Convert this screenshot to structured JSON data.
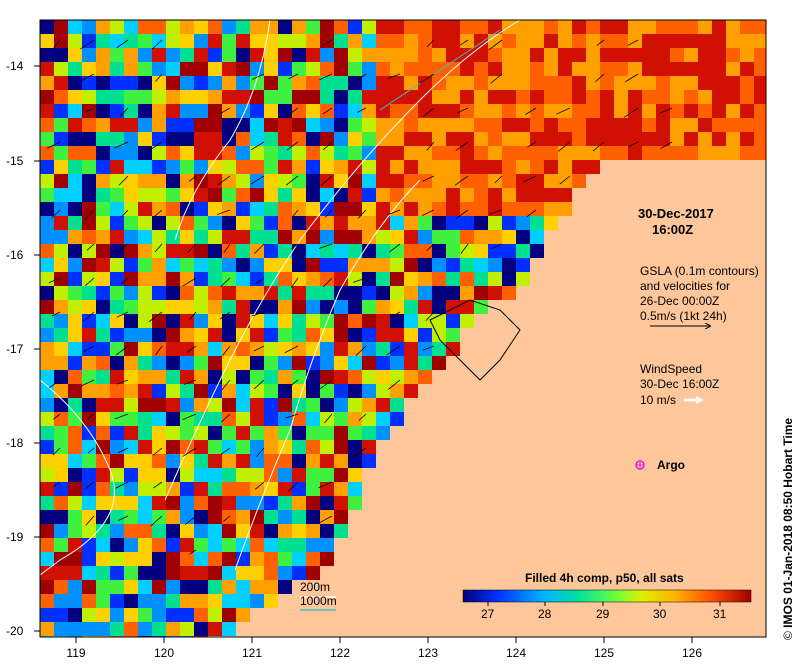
{
  "map": {
    "date_title": "30-Dec-2017",
    "time_title": "16:00Z",
    "gsla_lines": [
      "GSLA (0.1m contours)",
      "and velocities for",
      "26-Dec 00:00Z",
      "0.5m/s (1kt 24h)"
    ],
    "wind_lines": [
      "WindSpeed",
      "30-Dec 16:00Z",
      "10 m/s"
    ],
    "argo_label": "Argo",
    "depth_200": "200m",
    "depth_1000": "1000m",
    "colorbar_title": "Filled 4h comp, p50, all sats",
    "colorbar_ticks": [
      "27",
      "28",
      "29",
      "30",
      "31"
    ],
    "x_ticks": [
      "119",
      "120",
      "121",
      "122",
      "123",
      "124",
      "125",
      "126"
    ],
    "y_ticks": [
      "-14",
      "-15",
      "-16",
      "-17",
      "-18",
      "-19",
      "-20"
    ],
    "credit_symbol": "©",
    "credit": "IMOS 01-Jan-2018 08:50 Hobart Time",
    "colors": {
      "land": "#fdc79b",
      "argo": "#e020e0",
      "contour_200": "#ffffff",
      "contour_1000": "#3fc0c0"
    }
  }
}
